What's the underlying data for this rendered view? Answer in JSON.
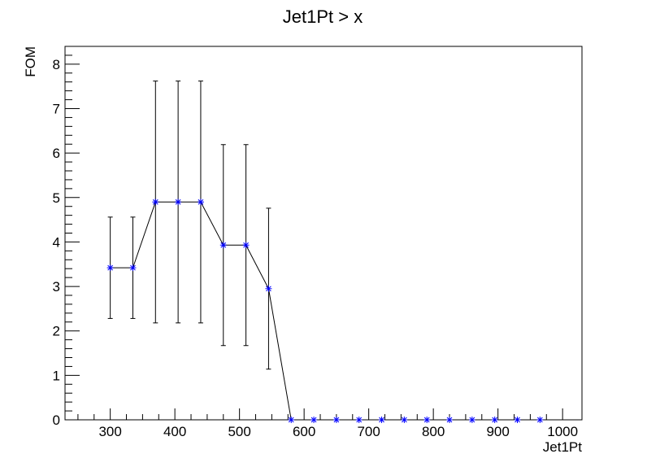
{
  "chart_data": {
    "type": "line",
    "title": "Jet1Pt > x",
    "xlabel": "Jet1Pt",
    "ylabel": "FOM",
    "xlim": [
      230,
      1030
    ],
    "ylim": [
      0,
      8.4
    ],
    "x_ticks": [
      "300",
      "400",
      "500",
      "600",
      "700",
      "800",
      "900",
      "1000"
    ],
    "y_ticks": [
      "0",
      "1",
      "2",
      "3",
      "4",
      "5",
      "6",
      "7",
      "8"
    ],
    "grid": false,
    "legend": "none",
    "line_color": "#000000",
    "marker_color": "#0000ff",
    "marker": "star",
    "series": [
      {
        "x": [
          300,
          335,
          370,
          405,
          440,
          475,
          510,
          545,
          580,
          615,
          650,
          685,
          720,
          755,
          790,
          825,
          860,
          895,
          930,
          965
        ],
        "y": [
          3.42,
          3.42,
          4.9,
          4.9,
          4.9,
          3.93,
          3.93,
          2.95,
          0,
          0,
          0,
          0,
          0,
          0,
          0,
          0,
          0,
          0,
          0,
          0
        ],
        "y_err": [
          1.14,
          1.14,
          2.72,
          2.72,
          2.72,
          2.26,
          2.26,
          1.81,
          0,
          0,
          0,
          0,
          0,
          0,
          0,
          0,
          0,
          0,
          0,
          0
        ]
      }
    ]
  }
}
